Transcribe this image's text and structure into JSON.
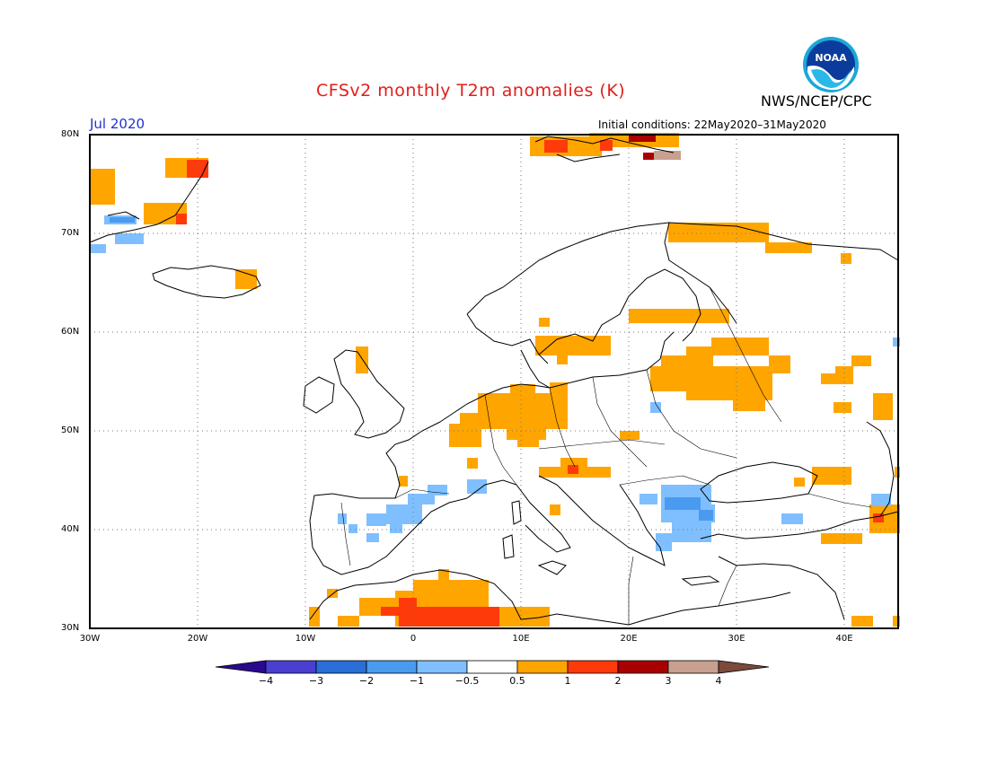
{
  "title": "CFSv2 monthly T2m anomalies (K)",
  "agency": "NWS/NCEP/CPC",
  "logo_text": "NOAA",
  "month_label": "Jul 2020",
  "initial_conditions": "Initial conditions: 22May2020–31May2020",
  "colors": {
    "title": "#e0201c",
    "month": "#2233cc",
    "orange": "#ffa500",
    "red_orange": "#ff3a0a",
    "dark_red": "#a80000",
    "light_blue": "#7fbfff",
    "blue": "#4a9af0"
  },
  "map": {
    "lat_ticks": [
      "80N",
      "70N",
      "60N",
      "50N",
      "40N",
      "30N"
    ],
    "lon_ticks": [
      "30W",
      "20W",
      "10W",
      "0",
      "10E",
      "20E",
      "30E",
      "40E"
    ],
    "lon_range": [
      -30,
      45
    ],
    "lat_range": [
      30,
      80
    ],
    "grid": "dotted"
  },
  "colorbar": {
    "labels": [
      "−4",
      "−3",
      "−2",
      "−1",
      "−0.5",
      "0.5",
      "1",
      "2",
      "3",
      "4"
    ],
    "colors": [
      "#2a0a8c",
      "#4a3fd0",
      "#2a6ed8",
      "#4a9af0",
      "#7fbfff",
      "#ffffff",
      "#ffa500",
      "#ff3a0a",
      "#a80000",
      "#c8a090",
      "#7a4a3a"
    ]
  }
}
